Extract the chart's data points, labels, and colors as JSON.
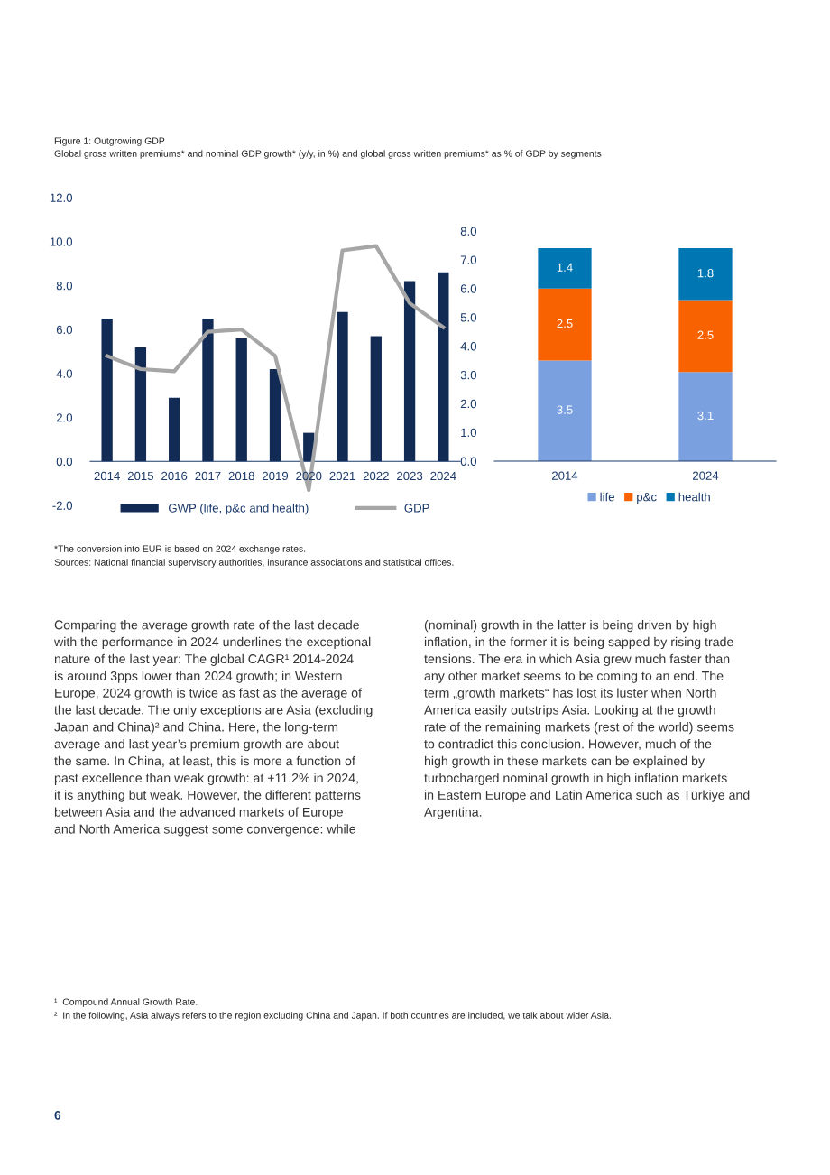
{
  "chart_data": [
    {
      "type": "bar",
      "title": "Figure 1: Outgrowing GDP",
      "subtitle": "Global gross written premiums* and nominal GDP growth* (y/y, in %) and global gross written premiums* as % of GDP by segments",
      "categories": [
        "2014",
        "2015",
        "2016",
        "2017",
        "2018",
        "2019",
        "2020",
        "2021",
        "2022",
        "2023",
        "2024"
      ],
      "series": [
        {
          "name": "GWP (life, p&c and health)",
          "type": "bar",
          "color": "#122b54",
          "values": [
            6.5,
            5.2,
            2.9,
            6.5,
            5.6,
            4.2,
            1.3,
            6.8,
            5.7,
            8.2,
            8.6
          ]
        },
        {
          "name": "GDP",
          "type": "line",
          "color": "#a6a6a6",
          "values": [
            4.8,
            4.2,
            4.1,
            5.9,
            6.0,
            4.8,
            -1.3,
            9.6,
            9.8,
            7.2,
            6.1
          ]
        }
      ],
      "ylim": [
        -2,
        12
      ],
      "yticks": [
        {
          "value": -2,
          "label": "-2.0"
        },
        {
          "value": 0,
          "label": "0.0"
        },
        {
          "value": 2,
          "label": "2.0"
        },
        {
          "value": 4,
          "label": "4.0"
        },
        {
          "value": 6,
          "label": "6.0"
        },
        {
          "value": 8,
          "label": "8.0"
        },
        {
          "value": 10,
          "label": "10.0"
        },
        {
          "value": 12,
          "label": "12.0"
        }
      ],
      "legend": "bottom",
      "grid": false,
      "marker": "none",
      "line_style": "solid",
      "annotations": [
        "*The conversion into EUR is based on 2024 exchange rates.",
        "Sources: National financial supervisory authorities, insurance associations and statistical offices.",
        "Comparing the average growth rate of the last decade\nwith the performance in 2024 underlines the exceptional\nnature of the last year: The global CAGR¹ 2014-2024\nis around 3pps lower than 2024 growth; in Western\nEurope, 2024 growth is twice as fast as the average of\nthe last decade. The only exceptions are Asia (excluding\nJapan and China)² and China. Here, the long-term\naverage and last year’s premium growth are about\nthe same. In China, at least, this is more a function of\npast excellence than weak growth: at +11.2% in 2024,\nit is anything but weak. However, the different patterns\nbetween Asia and the advanced markets of Europe\nand North America suggest some convergence: while",
        "(nominal) growth in the latter is being driven by high\ninflation, in the former it is being sapped by rising trade\ntensions. The era in which Asia grew much faster than\nany other market seems to be coming to an end. The\nterm „growth markets“ has lost its luster when North\nAmerica easily outstrips Asia. Looking at the growth\nrate of the remaining markets (rest of the world) seems\nto contradict this conclusion. However, much of the\nhigh growth in these markets can be explained by\nturbocharged nominal growth in high inflation markets\nin Eastern Europe and Latin America such as Türkiye and\nArgentina.",
        "¹  Compound Annual Growth Rate.",
        "²  In the following, Asia always refers to the region excluding China and Japan. If both countries are included, we talk about wider Asia.",
        "6"
      ]
    },
    {
      "type": "bar",
      "stacked": true,
      "data_labels": true,
      "categories": [
        "2014",
        "2024"
      ],
      "series": [
        {
          "name": "life",
          "color": "#7aa0e0",
          "values": [
            3.5,
            3.1
          ]
        },
        {
          "name": "p&c",
          "color": "#f86200",
          "values": [
            2.5,
            2.5
          ]
        },
        {
          "name": "health",
          "color": "#0077b3",
          "values": [
            1.4,
            1.8
          ]
        }
      ],
      "ylim": [
        0,
        8
      ],
      "yticks": [
        {
          "value": 0,
          "label": "0.0"
        },
        {
          "value": 1,
          "label": "1.0"
        },
        {
          "value": 2,
          "label": "2.0"
        },
        {
          "value": 3,
          "label": "3.0"
        },
        {
          "value": 4,
          "label": "4.0"
        },
        {
          "value": 5,
          "label": "5.0"
        },
        {
          "value": 6,
          "label": "6.0"
        },
        {
          "value": 7,
          "label": "7.0"
        },
        {
          "value": 8,
          "label": "8.0"
        }
      ],
      "legend": "bottom",
      "grid": false
    }
  ]
}
